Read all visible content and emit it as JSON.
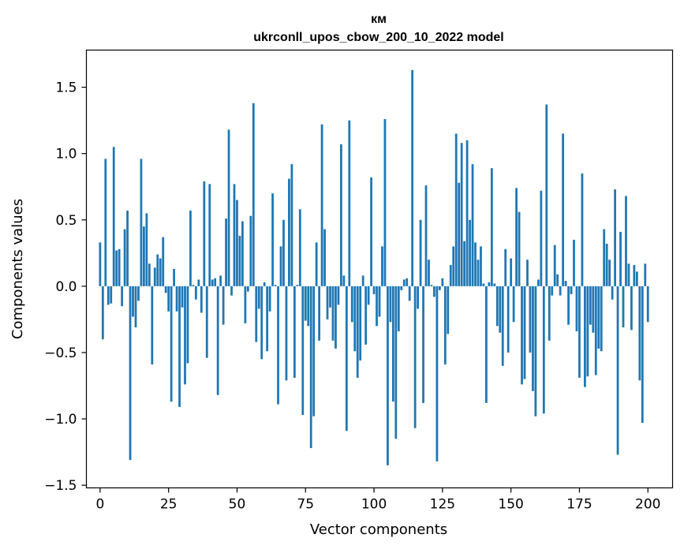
{
  "chart_data": {
    "type": "bar",
    "title": "км",
    "subtitle": "ukrconll_upos_cbow_200_10_2022 model",
    "xlabel": "Vector components",
    "ylabel": "Components values",
    "xlim": [
      -5,
      209
    ],
    "ylim": [
      -1.52,
      1.78
    ],
    "xticks": [
      0,
      25,
      50,
      75,
      100,
      125,
      150,
      175,
      200
    ],
    "xtick_labels": [
      "0",
      "25",
      "50",
      "75",
      "100",
      "125",
      "150",
      "175",
      "200"
    ],
    "yticks": [
      -1.5,
      -1.0,
      -0.5,
      0.0,
      0.5,
      1.0,
      1.5
    ],
    "ytick_labels": [
      "−1.5",
      "−1.0",
      "−0.5",
      "0.0",
      "0.5",
      "1.0",
      "1.5"
    ],
    "grid": false,
    "bar_color": "#1f77b4",
    "values": [
      0.33,
      -0.4,
      0.96,
      -0.14,
      -0.13,
      1.05,
      0.27,
      0.28,
      -0.15,
      0.43,
      0.57,
      -1.31,
      -0.23,
      -0.31,
      -0.11,
      0.96,
      0.45,
      0.55,
      0.17,
      -0.59,
      0.14,
      0.24,
      0.21,
      0.37,
      -0.05,
      -0.19,
      -0.87,
      0.13,
      -0.19,
      -0.91,
      -0.16,
      -0.74,
      -0.58,
      0.57,
      0.01,
      -0.1,
      0.05,
      -0.2,
      0.79,
      -0.54,
      0.77,
      0.05,
      0.06,
      -0.82,
      0.08,
      -0.29,
      0.51,
      1.18,
      -0.07,
      0.77,
      0.65,
      0.38,
      0.49,
      -0.28,
      -0.04,
      0.53,
      1.38,
      -0.42,
      -0.17,
      -0.55,
      0.03,
      -0.49,
      -0.19,
      0.7,
      0.01,
      -0.89,
      0.3,
      0.5,
      -0.71,
      0.81,
      0.92,
      -0.69,
      0.01,
      0.58,
      -0.97,
      -0.26,
      -0.3,
      -1.22,
      -0.98,
      0.33,
      -0.41,
      1.22,
      0.43,
      -0.25,
      -0.16,
      -0.41,
      -0.47,
      -0.14,
      1.07,
      0.08,
      -1.09,
      1.25,
      -0.27,
      -0.49,
      -0.69,
      -0.56,
      0.08,
      -0.44,
      -0.14,
      0.82,
      -0.06,
      -0.3,
      -0.23,
      0.3,
      1.26,
      -1.35,
      -0.27,
      -0.87,
      -1.15,
      -0.34,
      -0.03,
      0.05,
      0.06,
      -0.11,
      1.63,
      -1.07,
      -0.17,
      0.5,
      -0.88,
      0.76,
      0.2,
      0.01,
      -0.08,
      -1.32,
      -0.03,
      0.06,
      -0.59,
      -0.36,
      0.16,
      0.3,
      1.15,
      0.78,
      1.08,
      0.34,
      1.1,
      0.5,
      0.92,
      0.33,
      0.2,
      0.3,
      0.02,
      -0.88,
      0.03,
      0.89,
      0.02,
      -0.3,
      -0.35,
      -0.6,
      0.28,
      -0.5,
      0.21,
      -0.27,
      0.74,
      0.56,
      -0.74,
      -0.7,
      0.2,
      -0.5,
      -0.79,
      -0.98,
      0.05,
      0.72,
      -0.96,
      1.37,
      -0.41,
      -0.07,
      0.31,
      0.09,
      -0.07,
      1.15,
      0.04,
      -0.29,
      -0.06,
      0.35,
      -0.34,
      -0.69,
      0.85,
      -0.76,
      -0.68,
      -0.29,
      -0.35,
      -0.67,
      -0.47,
      -0.49,
      0.43,
      0.32,
      0.2,
      -0.1,
      0.73,
      -1.27,
      0.41,
      -0.31,
      0.68,
      0.17,
      -0.33,
      0.16,
      0.11,
      -0.71,
      -1.03,
      0.17,
      -0.27
    ]
  }
}
